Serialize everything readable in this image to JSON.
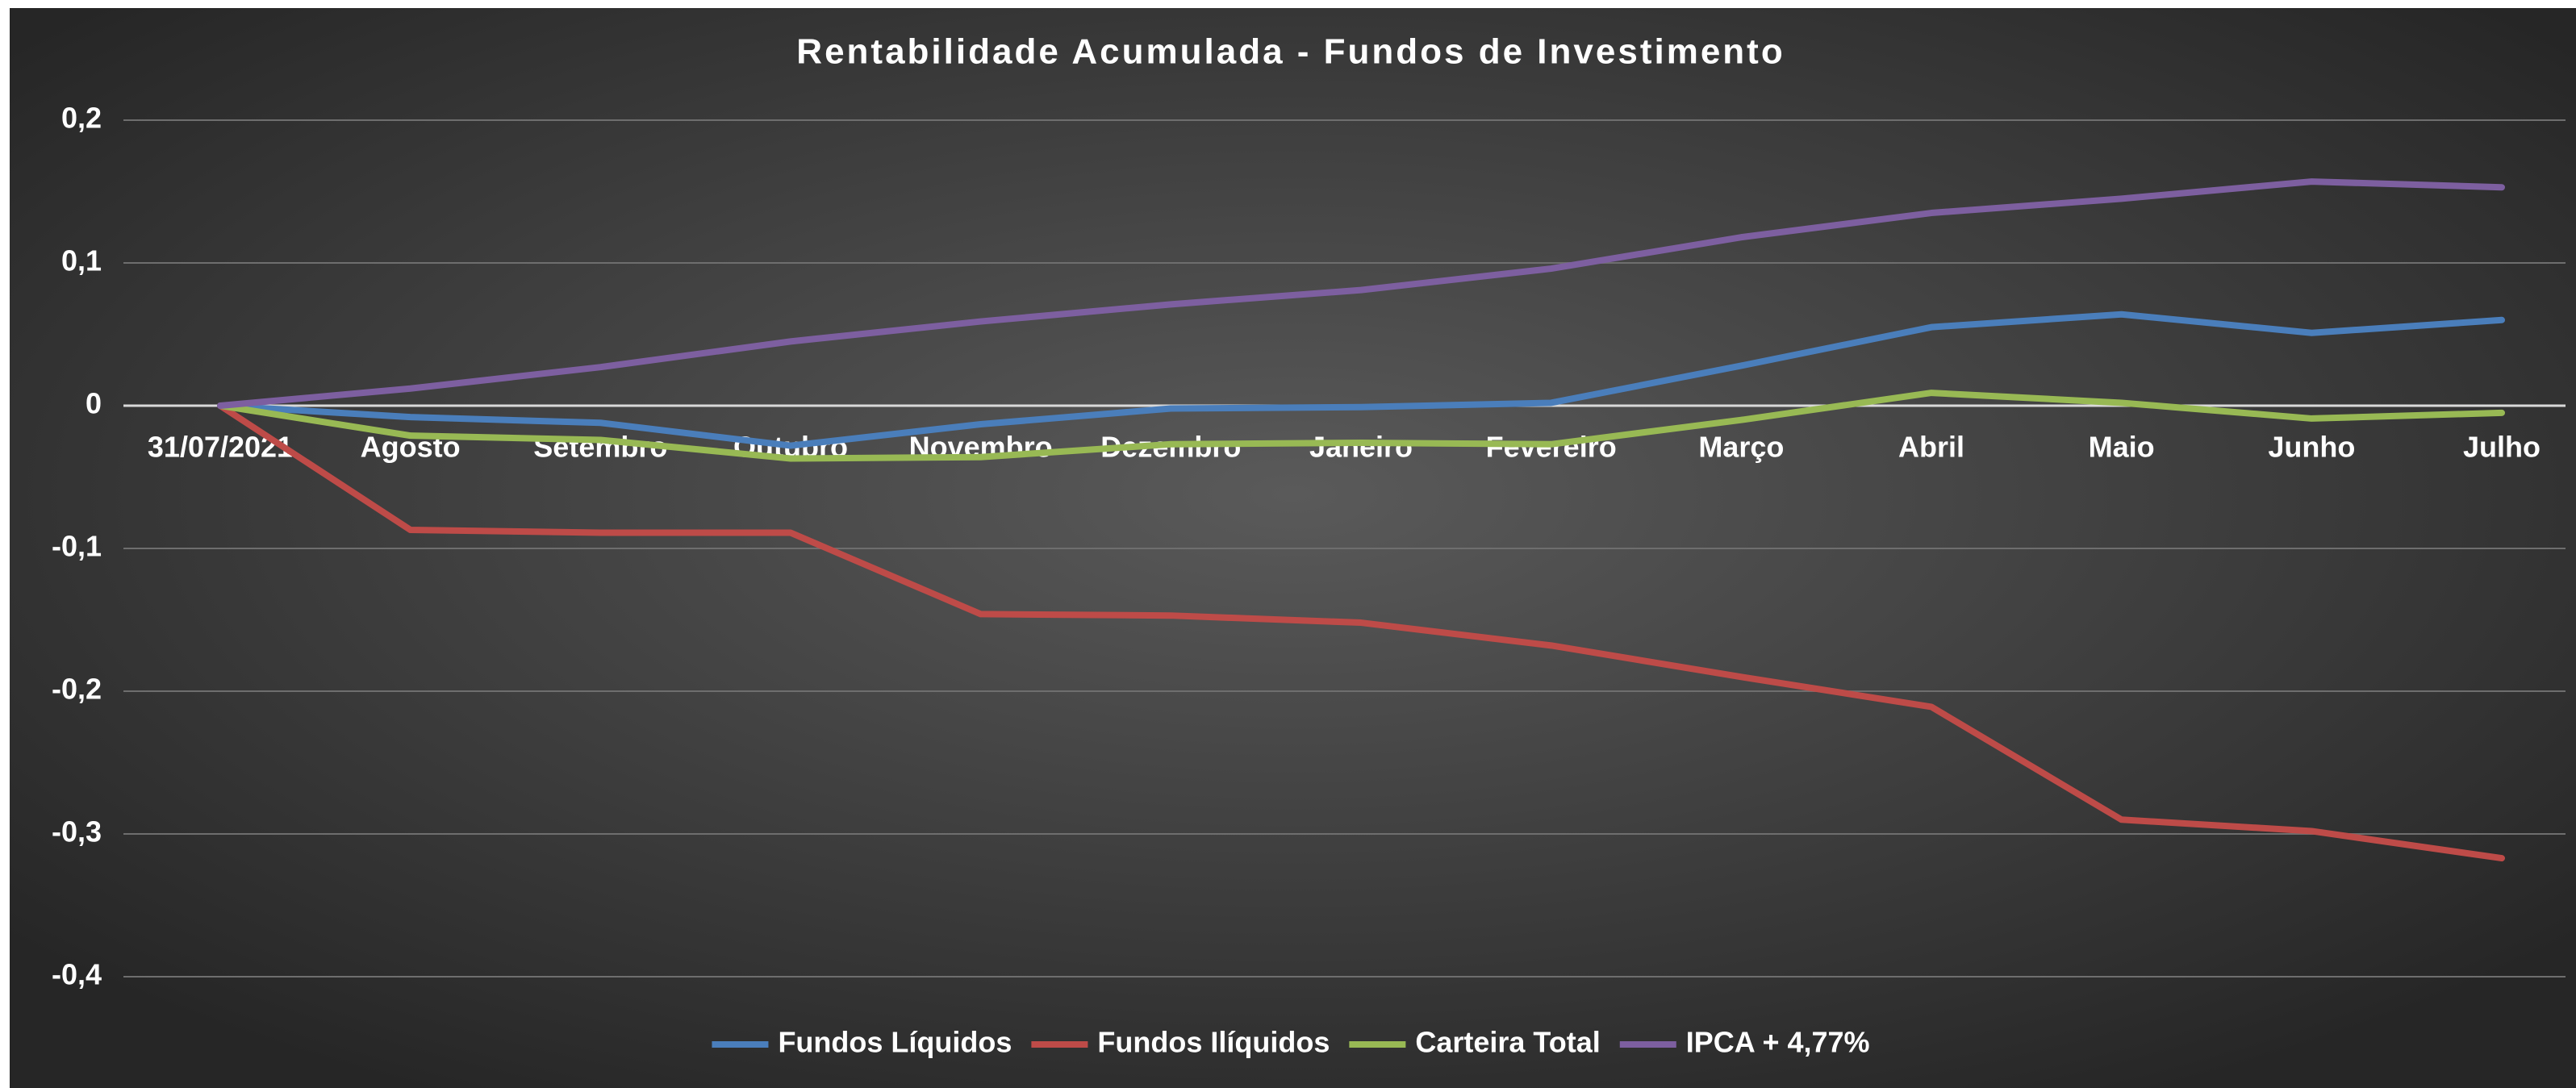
{
  "chart_data": {
    "type": "line",
    "title": "Rentabilidade Acumulada - Fundos de Investimento",
    "categories": [
      "31/07/2021",
      "Agosto",
      "Setembro",
      "Outubro",
      "Novembro",
      "Dezembro",
      "Janeiro",
      "Fevereiro",
      "Março",
      "Abril",
      "Maio",
      "Junho",
      "Julho"
    ],
    "series": [
      {
        "name": "Fundos Líquidos",
        "color": "#4a7ebb",
        "values": [
          0,
          -0.008,
          -0.012,
          -0.028,
          -0.013,
          -0.002,
          -0.001,
          0.002,
          0.028,
          0.055,
          0.064,
          0.051,
          0.06
        ]
      },
      {
        "name": "Fundos Ilíquidos",
        "color": "#be4b48",
        "values": [
          0,
          -0.087,
          -0.089,
          -0.089,
          -0.146,
          -0.147,
          -0.152,
          -0.168,
          -0.19,
          -0.211,
          -0.29,
          -0.298,
          -0.317
        ]
      },
      {
        "name": "Carteira Total",
        "color": "#98b954",
        "values": [
          0,
          -0.021,
          -0.024,
          -0.037,
          -0.036,
          -0.027,
          -0.026,
          -0.027,
          -0.01,
          0.009,
          0.002,
          -0.009,
          -0.005
        ]
      },
      {
        "name": "IPCA + 4,77%",
        "color": "#7d5fa0",
        "values": [
          0,
          0.012,
          0.027,
          0.045,
          0.059,
          0.071,
          0.081,
          0.096,
          0.118,
          0.135,
          0.145,
          0.157,
          0.153
        ]
      }
    ],
    "ylim": [
      -0.4,
      0.2
    ],
    "yticks": [
      {
        "value": -0.4,
        "label": "-0,4"
      },
      {
        "value": -0.3,
        "label": "-0,3"
      },
      {
        "value": -0.2,
        "label": "-0,2"
      },
      {
        "value": -0.1,
        "label": "-0,1"
      },
      0,
      {
        "value": 0.1,
        "label": "0,1"
      },
      {
        "value": 0.2,
        "label": "0,2"
      }
    ],
    "grid": true,
    "legend": "bottom"
  }
}
